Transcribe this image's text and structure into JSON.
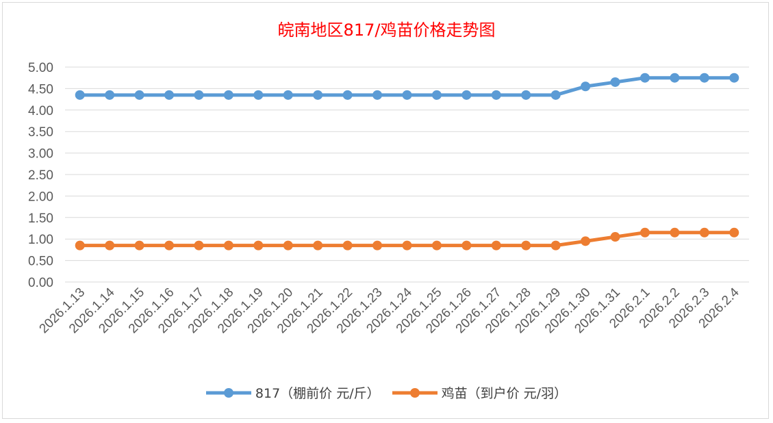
{
  "chart_data": {
    "type": "line",
    "title": "皖南地区817/鸡苗价格走势图",
    "xlabel": "",
    "ylabel": "",
    "ylim": [
      0,
      5
    ],
    "yticks": [
      "0.00",
      "0.50",
      "1.00",
      "1.50",
      "2.00",
      "2.50",
      "3.00",
      "3.50",
      "4.00",
      "4.50",
      "5.00"
    ],
    "grid": true,
    "legend_position": "bottom",
    "x": [
      "2026.1.13",
      "2026.1.14",
      "2026.1.15",
      "2026.1.16",
      "2026.1.17",
      "2026.1.18",
      "2026.1.19",
      "2026.1.20",
      "2026.1.21",
      "2026.1.22",
      "2026.1.23",
      "2026.1.24",
      "2026.1.25",
      "2026.1.26",
      "2026.1.27",
      "2026.1.28",
      "2026.1.29",
      "2026.1.30",
      "2026.1.31",
      "2026.2.1",
      "2026.2.2",
      "2026.2.3",
      "2026.2.4"
    ],
    "series": [
      {
        "name": "817（棚前价 元/斤）",
        "color": "#5b9bd5",
        "values": [
          4.35,
          4.35,
          4.35,
          4.35,
          4.35,
          4.35,
          4.35,
          4.35,
          4.35,
          4.35,
          4.35,
          4.35,
          4.35,
          4.35,
          4.35,
          4.35,
          4.35,
          4.55,
          4.65,
          4.75,
          4.75,
          4.75,
          4.75
        ]
      },
      {
        "name": "鸡苗（到户价 元/羽）",
        "color": "#ed7d31",
        "values": [
          0.85,
          0.85,
          0.85,
          0.85,
          0.85,
          0.85,
          0.85,
          0.85,
          0.85,
          0.85,
          0.85,
          0.85,
          0.85,
          0.85,
          0.85,
          0.85,
          0.85,
          0.95,
          1.05,
          1.15,
          1.15,
          1.15,
          1.15
        ]
      }
    ]
  }
}
